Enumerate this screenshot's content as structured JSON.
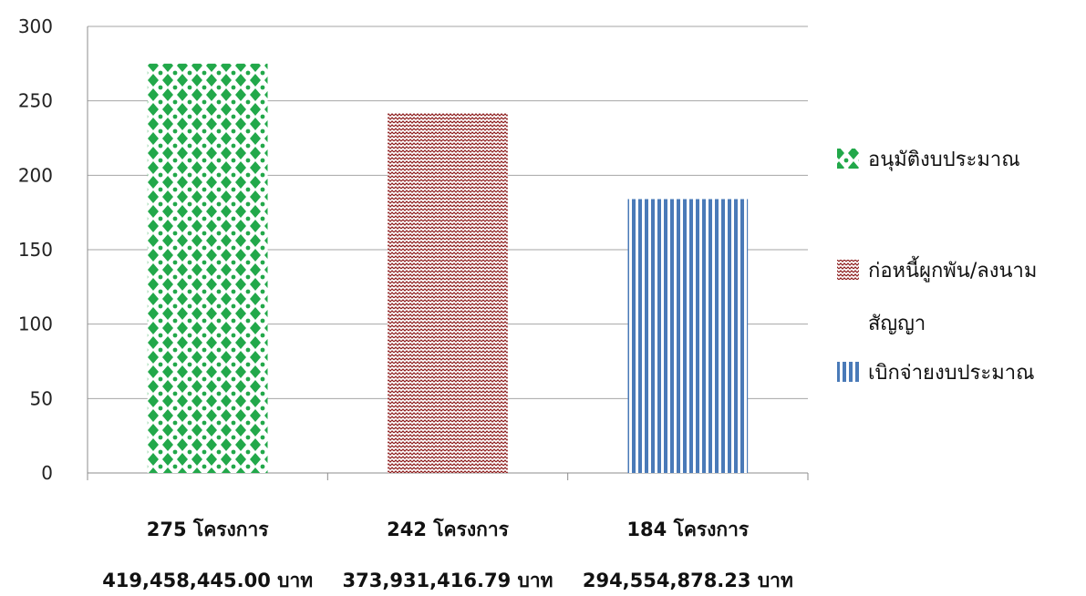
{
  "chart_data": {
    "type": "bar",
    "title": "",
    "xlabel": "",
    "ylabel": "",
    "ylim": [
      0,
      300
    ],
    "yticks": [
      0,
      50,
      100,
      150,
      200,
      250,
      300
    ],
    "grid": true,
    "legend_position": "right",
    "categories": [
      {
        "line1": "275 โครงการ",
        "line2": "419,458,445.00 บาท"
      },
      {
        "line1": "242 โครงการ",
        "line2": "373,931,416.79 บาท"
      },
      {
        "line1": "184 โครงการ",
        "line2": "294,554,878.23 บาท"
      }
    ],
    "values": [
      275,
      242,
      184
    ],
    "series_legend": [
      {
        "lines": [
          "อนุมัติงบประมาณ"
        ],
        "color": "#22a84a",
        "pattern": "diamond-dots"
      },
      {
        "lines": [
          "ก่อหนี้ผูกพัน/ลงนาม",
          "สัญญา"
        ],
        "color": "#8b1a1a",
        "pattern": "zigzag"
      },
      {
        "lines": [
          "เบิกจ่ายงบประมาณ"
        ],
        "color": "#4a7ab8",
        "pattern": "vertical-stripes"
      }
    ]
  }
}
